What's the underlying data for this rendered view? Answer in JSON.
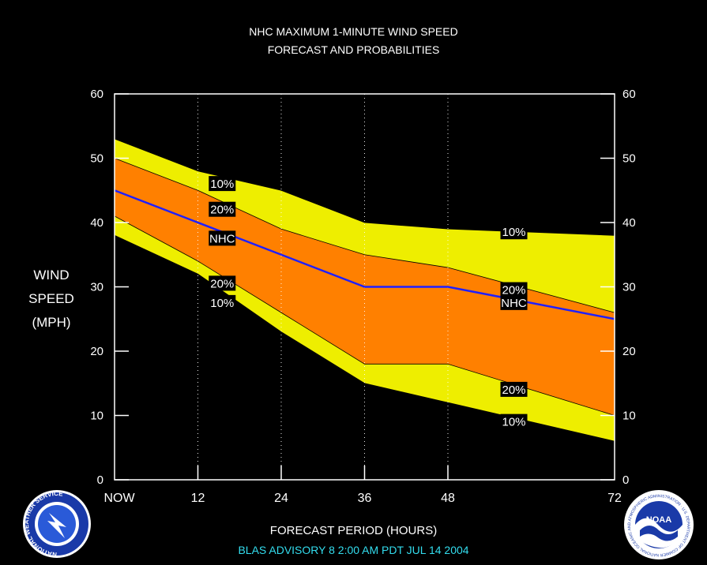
{
  "title_line1": "NHC MAXIMUM 1-MINUTE WIND SPEED",
  "title_line2": "FORECAST AND PROBABILITIES",
  "ylabel_lines": [
    "WIND",
    "SPEED",
    "(MPH)"
  ],
  "xlabel": "FORECAST PERIOD (HOURS)",
  "advisory": "BLAS   ADVISORY  8  2:00  AM  PDT  JUL 14  2004",
  "logos": {
    "left": "NATIONAL WEATHER SERVICE",
    "right_center": "NOAA",
    "right_ring": "NATIONAL OCEANIC AND ATMOSPHERIC ADMINISTRATION · U.S. DEPARTMENT OF COMMERCE"
  },
  "colors": {
    "background": "#000000",
    "outer_band": "#eeee00",
    "inner_band": "#ff8000",
    "nhc_line": "#2020ff",
    "axis": "#ffffff",
    "label_bg": "#000000"
  },
  "chart_data": {
    "type": "area",
    "x": [
      0,
      12,
      24,
      36,
      48,
      72
    ],
    "x_tick_labels": [
      "NOW",
      "12",
      "24",
      "36",
      "48",
      "72"
    ],
    "xlim": [
      0,
      72
    ],
    "ylim": [
      0,
      60
    ],
    "y_ticks": [
      0,
      10,
      20,
      30,
      40,
      50,
      60
    ],
    "grid": "vertical dotted at 12, 24, 36, 48",
    "series": [
      {
        "band": "upper_10",
        "values": [
          53,
          48,
          45,
          40,
          39,
          38
        ]
      },
      {
        "band": "upper_20",
        "values": [
          50,
          45,
          39,
          35,
          33,
          26
        ]
      },
      {
        "band": "nhc",
        "values": [
          45,
          40,
          35,
          30,
          30,
          25
        ]
      },
      {
        "band": "lower_20",
        "values": [
          41,
          34,
          26,
          18,
          18,
          10
        ]
      },
      {
        "band": "lower_10",
        "values": [
          38,
          32,
          23,
          15,
          12,
          6
        ]
      }
    ],
    "annotations": [
      {
        "text": "10%",
        "x": 15.5,
        "y": 46.0
      },
      {
        "text": "20%",
        "x": 15.5,
        "y": 42.0
      },
      {
        "text": "NHC",
        "x": 15.5,
        "y": 37.5
      },
      {
        "text": "20%",
        "x": 15.5,
        "y": 30.5
      },
      {
        "text": "10%",
        "x": 15.5,
        "y": 27.5
      },
      {
        "text": "10%",
        "x": 57.5,
        "y": 38.5
      },
      {
        "text": "20%",
        "x": 57.5,
        "y": 29.5
      },
      {
        "text": "NHC",
        "x": 57.5,
        "y": 27.5
      },
      {
        "text": "20%",
        "x": 57.5,
        "y": 14.0
      },
      {
        "text": "10%",
        "x": 57.5,
        "y": 9.0
      }
    ]
  }
}
